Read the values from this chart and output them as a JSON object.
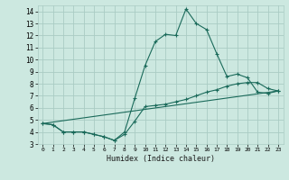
{
  "title": "",
  "xlabel": "Humidex (Indice chaleur)",
  "background_color": "#cce8e0",
  "grid_color": "#aaccc4",
  "line_color": "#1a6a5a",
  "xlim": [
    -0.5,
    23.5
  ],
  "ylim": [
    3,
    14.5
  ],
  "yticks": [
    3,
    4,
    5,
    6,
    7,
    8,
    9,
    10,
    11,
    12,
    13,
    14
  ],
  "xticks": [
    0,
    1,
    2,
    3,
    4,
    5,
    6,
    7,
    8,
    9,
    10,
    11,
    12,
    13,
    14,
    15,
    16,
    17,
    18,
    19,
    20,
    21,
    22,
    23
  ],
  "line1_x": [
    0,
    1,
    2,
    3,
    4,
    5,
    6,
    7,
    8,
    9,
    10,
    11,
    12,
    13,
    14,
    15,
    16,
    17,
    18,
    19,
    20,
    21,
    22,
    23
  ],
  "line1_y": [
    4.7,
    4.6,
    4.0,
    4.0,
    4.0,
    3.8,
    3.6,
    3.3,
    4.0,
    6.8,
    9.5,
    11.5,
    12.1,
    12.0,
    14.2,
    13.0,
    12.5,
    10.5,
    8.6,
    8.8,
    8.5,
    7.3,
    7.2,
    7.4
  ],
  "line2_x": [
    0,
    1,
    2,
    3,
    4,
    5,
    6,
    7,
    8,
    9,
    10,
    11,
    12,
    13,
    14,
    15,
    16,
    17,
    18,
    19,
    20,
    21,
    22,
    23
  ],
  "line2_y": [
    4.7,
    4.6,
    4.0,
    4.0,
    4.0,
    3.8,
    3.6,
    3.3,
    3.8,
    4.9,
    6.1,
    6.2,
    6.3,
    6.5,
    6.7,
    7.0,
    7.3,
    7.5,
    7.8,
    8.0,
    8.1,
    8.1,
    7.6,
    7.4
  ],
  "line3_x": [
    0,
    23
  ],
  "line3_y": [
    4.7,
    7.4
  ]
}
